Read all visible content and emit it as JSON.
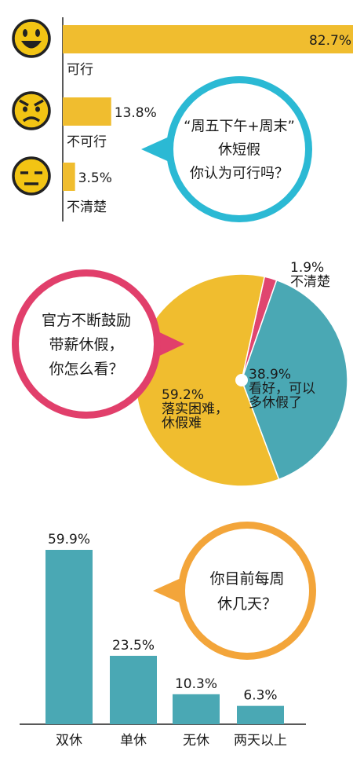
{
  "colors": {
    "yellow": "#f0bd2f",
    "teal": "#4aa8b4",
    "pink": "#e0456f",
    "orange": "#f3a53a",
    "cyan": "#2bb9d4",
    "magenta": "#e13f6b"
  },
  "chart_data": [
    {
      "type": "bar",
      "orientation": "horizontal",
      "categories": [
        "可行",
        "不可行",
        "不清楚"
      ],
      "values": [
        82.7,
        13.8,
        3.5
      ],
      "value_labels": [
        "82.7%",
        "13.8%",
        "3.5%"
      ],
      "icons": [
        "happy-face-icon",
        "angry-face-icon",
        "neutral-face-icon"
      ],
      "question": [
        "“周五下午+周末”",
        "休短假",
        "你认为可行吗？"
      ],
      "xlim": [
        0,
        100
      ]
    },
    {
      "type": "pie",
      "slices": [
        {
          "label_lines": [
            "不清楚"
          ],
          "value": 1.9,
          "value_label": "1.9%",
          "color": "#e0456f"
        },
        {
          "label_lines": [
            "看好，可以",
            "多休假了"
          ],
          "value": 38.9,
          "value_label": "38.9%",
          "color": "#4aa8b4"
        },
        {
          "label_lines": [
            "落实困难，",
            "休假难"
          ],
          "value": 59.2,
          "value_label": "59.2%",
          "color": "#f0bd2f"
        }
      ],
      "question": [
        "官方不断鼓励",
        "带薪休假，",
        "你怎么看？"
      ]
    },
    {
      "type": "bar",
      "orientation": "vertical",
      "categories": [
        "双休",
        "单休",
        "无休",
        "两天以上"
      ],
      "values": [
        59.9,
        23.5,
        10.3,
        6.3
      ],
      "value_labels": [
        "59.9%",
        "23.5%",
        "10.3%",
        "6.3%"
      ],
      "question": [
        "你目前每周",
        "休几天？"
      ],
      "ylim": [
        0,
        60
      ]
    }
  ]
}
